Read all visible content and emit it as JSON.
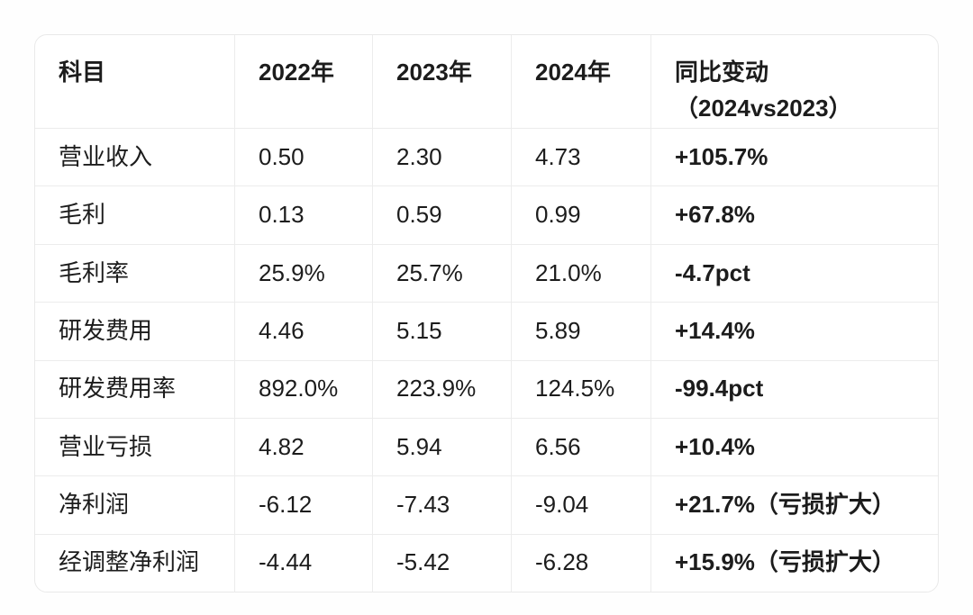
{
  "page": {
    "background": "#fefefe"
  },
  "colors": {
    "text": "#1c1c1c",
    "divider": "#ececec",
    "card_border": "#e9e9e9",
    "card_background": "#ffffff"
  },
  "table": {
    "headers": {
      "subject": "科目",
      "y2022": "2022年",
      "y2023": "2023年",
      "y2024": "2024年",
      "change": "同比变动\n（2024vs2023）"
    },
    "rows": [
      {
        "label": "营业收入",
        "y2022": "0.50",
        "y2023": "2.30",
        "y2024": "4.73",
        "change": "+105.7%"
      },
      {
        "label": "毛利",
        "y2022": "0.13",
        "y2023": "0.59",
        "y2024": "0.99",
        "change": "+67.8%"
      },
      {
        "label": "毛利率",
        "y2022": "25.9%",
        "y2023": "25.7%",
        "y2024": "21.0%",
        "change": "-4.7pct"
      },
      {
        "label": "研发费用",
        "y2022": "4.46",
        "y2023": "5.15",
        "y2024": "5.89",
        "change": "+14.4%"
      },
      {
        "label": "研发费用率",
        "y2022": "892.0%",
        "y2023": "223.9%",
        "y2024": "124.5%",
        "change": "-99.4pct"
      },
      {
        "label": "营业亏损",
        "y2022": "4.82",
        "y2023": "5.94",
        "y2024": "6.56",
        "change": "+10.4%"
      },
      {
        "label": "净利润",
        "y2022": "-6.12",
        "y2023": "-7.43",
        "y2024": "-9.04",
        "change": "+21.7%（亏损扩大）"
      },
      {
        "label": "经调整净利润",
        "y2022": "-4.44",
        "y2023": "-5.42",
        "y2024": "-6.28",
        "change": "+15.9%（亏损扩大）"
      }
    ]
  },
  "chart_data": {
    "type": "table",
    "title": "",
    "columns": [
      "科目",
      "2022年",
      "2023年",
      "2024年",
      "同比变动（2024vs2023）"
    ],
    "rows": [
      [
        "营业收入",
        "0.50",
        "2.30",
        "4.73",
        "+105.7%"
      ],
      [
        "毛利",
        "0.13",
        "0.59",
        "0.99",
        "+67.8%"
      ],
      [
        "毛利率",
        "25.9%",
        "25.7%",
        "21.0%",
        "-4.7pct"
      ],
      [
        "研发费用",
        "4.46",
        "5.15",
        "5.89",
        "+14.4%"
      ],
      [
        "研发费用率",
        "892.0%",
        "223.9%",
        "124.5%",
        "-99.4pct"
      ],
      [
        "营业亏损",
        "4.82",
        "5.94",
        "6.56",
        "+10.4%"
      ],
      [
        "净利润",
        "-6.12",
        "-7.43",
        "-9.04",
        "+21.7%（亏损扩大）"
      ],
      [
        "经调整净利润",
        "-4.44",
        "-5.42",
        "-6.28",
        "+15.9%（亏损扩大）"
      ]
    ]
  }
}
